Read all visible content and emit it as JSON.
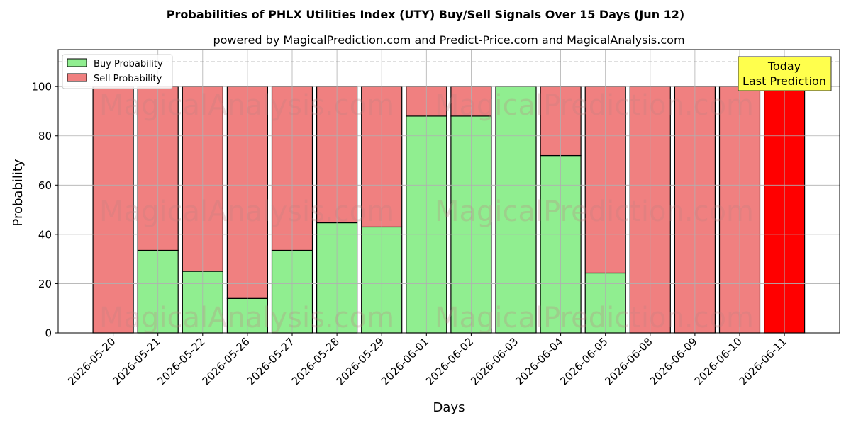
{
  "chart_data": {
    "type": "bar",
    "stacked": true,
    "title": "Probabilities of PHLX Utilities Index (UTY) Buy/Sell Signals Over 15 Days (Jun 12)",
    "subtitle": "powered by MagicalPrediction.com and Predict-Price.com and MagicalAnalysis.com",
    "xlabel": "Days",
    "ylabel": "Probability",
    "ylim": [
      0,
      115
    ],
    "yticks": [
      0,
      20,
      40,
      60,
      80,
      100
    ],
    "grid": true,
    "legend_position": "top-left",
    "reference_line": {
      "y": 110,
      "style": "dashed"
    },
    "categories": [
      "2026-05-20",
      "2026-05-21",
      "2026-05-22",
      "2026-05-26",
      "2026-05-27",
      "2026-05-28",
      "2026-05-29",
      "2026-06-01",
      "2026-06-02",
      "2026-06-03",
      "2026-06-04",
      "2026-06-05",
      "2026-06-08",
      "2026-06-09",
      "2026-06-10",
      "2026-06-11"
    ],
    "series": [
      {
        "name": "Buy Probability",
        "color": "#90ee90",
        "values": [
          0,
          33.5,
          25,
          14,
          33.5,
          44.7,
          43,
          88,
          88,
          100,
          72,
          24.3,
          0,
          0,
          0,
          0
        ]
      },
      {
        "name": "Sell Probability",
        "color": "#f08080",
        "values": [
          100,
          66.5,
          75,
          86,
          66.5,
          55.3,
          57,
          12,
          12,
          0,
          28,
          75.7,
          100,
          100,
          100,
          100
        ]
      }
    ],
    "highlight": {
      "index": 15,
      "color": "#ff0000"
    },
    "annotation": {
      "lines": [
        "Today",
        "Last Prediction"
      ],
      "background": "#ffff4d",
      "position": "top-right"
    },
    "watermarks": [
      "MagicalAnalysis.com",
      "MagicalPrediction.com"
    ]
  }
}
